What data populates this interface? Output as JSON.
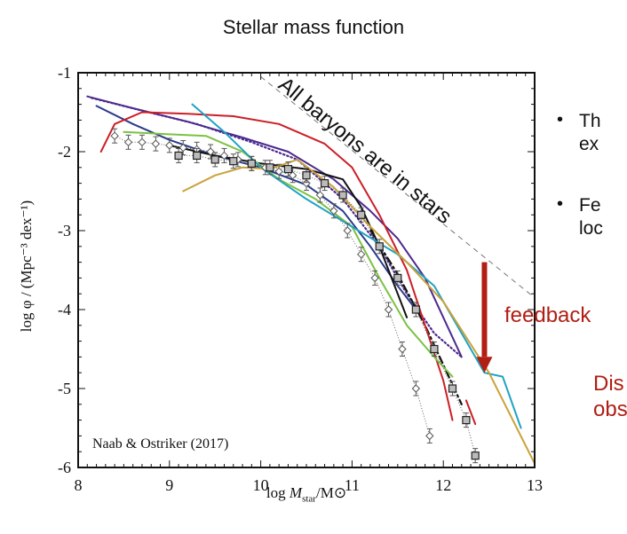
{
  "slide": {
    "title": "Stellar mass function",
    "bullets": [
      {
        "line1": "Th",
        "line2": "ex"
      },
      {
        "line1": "Fe",
        "line2": "loc"
      }
    ],
    "feedback_label": "feedback",
    "bottom_text": {
      "line1": "Dis",
      "line2": "obs"
    }
  },
  "colors": {
    "accent_red": "#b01e14",
    "red": "#cc1f26",
    "purple": "#4b2a8f",
    "navy": "#2a3a8c",
    "black": "#111111",
    "green": "#7cc242",
    "cyan": "#1fa3c4",
    "gold": "#c9a23a",
    "gray": "#555555"
  },
  "chart_data": {
    "type": "line",
    "title": "Stellar mass function",
    "xlabel": "log M_star/M_sun",
    "xlabel_parts": {
      "pre": "log ",
      "var": "M",
      "sub": "star",
      "post": "/M⊙"
    },
    "ylabel": "log φ / (Mpc⁻³ dex⁻¹)",
    "xlim": [
      8,
      13
    ],
    "ylim": [
      -6,
      -1
    ],
    "xticks": [
      "8",
      "9",
      "10",
      "11",
      "12",
      "13"
    ],
    "yticks": [
      "-1",
      "-2",
      "-3",
      "-4",
      "-5",
      "-6"
    ],
    "annotation_citation": "Naab & Ostriker (2017)",
    "annotation_baryons": "All baryons are in stars",
    "baryon_line": {
      "x": [
        10.0,
        13.0
      ],
      "y": [
        -1.05,
        -3.85
      ]
    },
    "feedback_arrow": {
      "x": 12.45,
      "y_from": -3.4,
      "y_to": -4.8
    },
    "series": [
      {
        "name": "purple",
        "color": "#4b2a8f",
        "style": "solid",
        "x": [
          8.1,
          8.6,
          9.2,
          9.8,
          10.3,
          10.8,
          11.2,
          11.5,
          11.8,
          12.0,
          12.2
        ],
        "y": [
          -1.3,
          -1.45,
          -1.62,
          -1.82,
          -2.0,
          -2.35,
          -2.75,
          -3.1,
          -3.6,
          -4.1,
          -4.6
        ]
      },
      {
        "name": "purple-dotted",
        "color": "#4b2a8f",
        "style": "dotted",
        "x": [
          8.15,
          8.7,
          9.3,
          9.9,
          10.4,
          10.9,
          11.3,
          11.6,
          11.9,
          12.2
        ],
        "y": [
          -1.32,
          -1.48,
          -1.65,
          -1.88,
          -2.1,
          -2.6,
          -3.2,
          -3.8,
          -4.3,
          -4.6
        ]
      },
      {
        "name": "navy",
        "color": "#2a3a8c",
        "style": "solid",
        "x": [
          8.2,
          8.6,
          9.0,
          9.5,
          10.0,
          10.5,
          10.9,
          11.2,
          11.5,
          11.7
        ],
        "y": [
          -1.42,
          -1.65,
          -1.85,
          -2.05,
          -2.2,
          -2.42,
          -2.75,
          -3.2,
          -3.7,
          -4.0
        ]
      },
      {
        "name": "black",
        "color": "#111111",
        "style": "solid",
        "x": [
          9.0,
          9.5,
          10.0,
          10.5,
          10.9,
          11.1,
          11.3,
          11.5,
          11.6
        ],
        "y": [
          -1.92,
          -2.05,
          -2.15,
          -2.22,
          -2.35,
          -2.7,
          -3.2,
          -3.8,
          -4.1
        ]
      },
      {
        "name": "black-dashdot",
        "color": "#111111",
        "style": "dashdot",
        "x": [
          11.2,
          11.5,
          11.8,
          12.0,
          12.2
        ],
        "y": [
          -3.0,
          -3.55,
          -4.2,
          -4.7,
          -5.2
        ]
      },
      {
        "name": "red",
        "color": "#cc1f26",
        "style": "solid",
        "x": [
          8.25,
          8.4,
          8.7,
          9.2,
          9.7,
          10.2,
          10.7,
          11.0,
          11.3,
          11.6,
          11.8,
          12.0,
          12.1
        ],
        "y": [
          -2.0,
          -1.65,
          -1.5,
          -1.52,
          -1.55,
          -1.65,
          -1.9,
          -2.2,
          -2.8,
          -3.5,
          -4.2,
          -4.9,
          -5.4
        ]
      },
      {
        "name": "red-segment",
        "color": "#cc1f26",
        "style": "solid",
        "x": [
          12.25,
          12.35
        ],
        "y": [
          -5.15,
          -5.45
        ]
      },
      {
        "name": "green",
        "color": "#7cc242",
        "style": "solid",
        "x": [
          8.5,
          9.0,
          9.4,
          9.8,
          10.2,
          10.6,
          11.0,
          11.3,
          11.6,
          11.9,
          12.1
        ],
        "y": [
          -1.75,
          -1.78,
          -1.8,
          -2.0,
          -2.35,
          -2.6,
          -2.95,
          -3.6,
          -4.2,
          -4.6,
          -4.85
        ]
      },
      {
        "name": "cyan",
        "color": "#1fa3c4",
        "style": "solid",
        "x": [
          9.25,
          9.6,
          10.0,
          10.5,
          11.0,
          11.5,
          11.9,
          12.2,
          12.45,
          12.65,
          12.85
        ],
        "y": [
          -1.4,
          -1.75,
          -2.2,
          -2.6,
          -2.95,
          -3.3,
          -3.7,
          -4.3,
          -4.8,
          -4.85,
          -5.5
        ]
      },
      {
        "name": "gold",
        "color": "#c9a23a",
        "style": "solid",
        "x": [
          9.15,
          9.5,
          9.8,
          10.1,
          10.4,
          10.8,
          11.2,
          11.6,
          12.0,
          12.5,
          13.0
        ],
        "y": [
          -2.5,
          -2.3,
          -2.2,
          -2.22,
          -2.1,
          -2.45,
          -2.95,
          -3.4,
          -3.9,
          -4.8,
          -5.95
        ]
      }
    ],
    "observations": [
      {
        "name": "diamond-points",
        "marker": "diamond",
        "x": [
          8.4,
          8.55,
          8.7,
          8.85,
          9.0,
          9.15,
          9.3,
          9.45,
          9.6,
          9.75,
          9.9,
          10.05,
          10.2,
          10.35,
          10.5,
          10.65,
          10.8,
          10.95,
          11.1,
          11.25,
          11.4,
          11.55,
          11.7,
          11.85
        ],
        "y": [
          -1.8,
          -1.88,
          -1.88,
          -1.9,
          -1.92,
          -1.95,
          -1.97,
          -2.0,
          -2.05,
          -2.1,
          -2.15,
          -2.2,
          -2.25,
          -2.3,
          -2.4,
          -2.55,
          -2.75,
          -3.0,
          -3.3,
          -3.6,
          -4.0,
          -4.5,
          -5.0,
          -5.6
        ]
      },
      {
        "name": "square-points",
        "marker": "square",
        "x": [
          9.1,
          9.3,
          9.5,
          9.7,
          9.9,
          10.1,
          10.3,
          10.5,
          10.7,
          10.9,
          11.1,
          11.3,
          11.5,
          11.7,
          11.9,
          12.1,
          12.25,
          12.35
        ],
        "y": [
          -2.05,
          -2.05,
          -2.1,
          -2.12,
          -2.15,
          -2.2,
          -2.22,
          -2.3,
          -2.4,
          -2.55,
          -2.8,
          -3.2,
          -3.6,
          -4.0,
          -4.5,
          -5.0,
          -5.4,
          -5.85
        ]
      }
    ]
  }
}
